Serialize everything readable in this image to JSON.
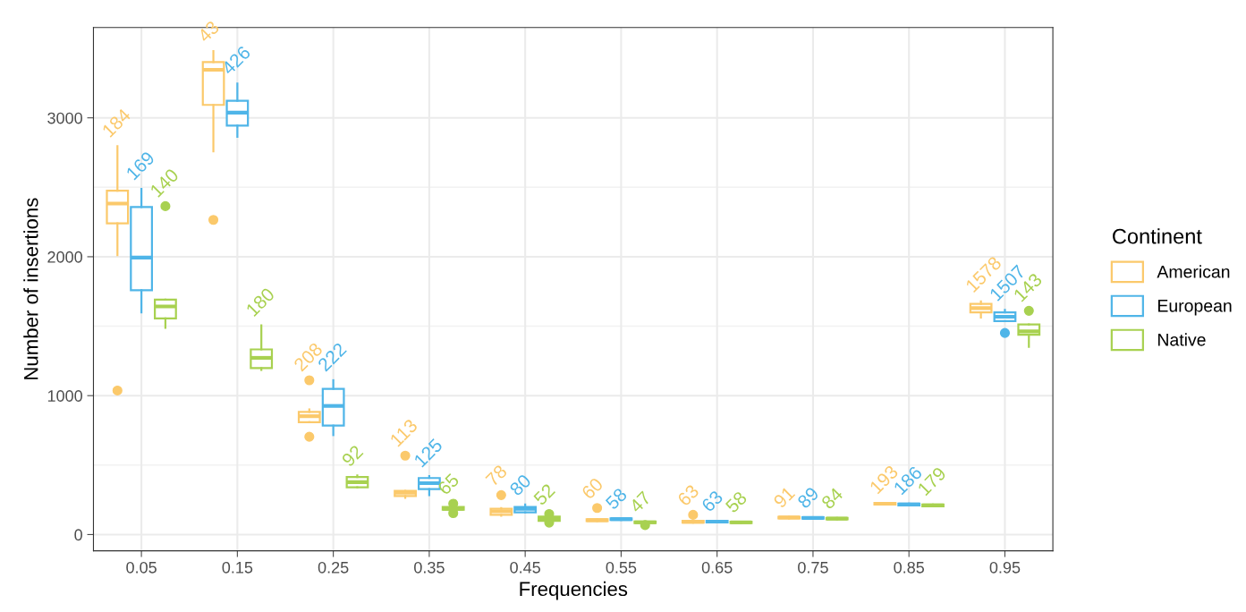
{
  "chart_data": {
    "type": "box",
    "xlabel": "Frequencies",
    "ylabel": "Number of insertions",
    "legend_title": "Continent",
    "legend": "right",
    "grid": true,
    "categories": [
      "0.05",
      "0.15",
      "0.25",
      "0.35",
      "0.45",
      "0.55",
      "0.65",
      "0.75",
      "0.85",
      "0.95"
    ],
    "ylim": [
      -117,
      3650
    ],
    "yticks": [
      0,
      1000,
      2000,
      3000
    ],
    "series": [
      {
        "name": "American",
        "color": "#fbc96b",
        "value_labels": [
          "184",
          "43",
          "208",
          "113",
          "78",
          "60",
          "63",
          "91",
          "193",
          "1578"
        ],
        "boxes": [
          {
            "low": 2012,
            "q1": 2241,
            "median": 2383,
            "q3": 2475,
            "high": 2796,
            "outliers": [
              1037
            ]
          },
          {
            "low": 2759,
            "q1": 3093,
            "median": 3346,
            "q3": 3401,
            "high": 3481,
            "outliers": [
              2265
            ]
          },
          {
            "low": 809,
            "q1": 809,
            "median": 852,
            "q3": 883,
            "high": 901,
            "outliers": [
              1111,
              704
            ]
          },
          {
            "low": 265,
            "q1": 278,
            "median": 302,
            "q3": 315,
            "high": 315,
            "outliers": [
              568
            ]
          },
          {
            "low": 136,
            "q1": 142,
            "median": 167,
            "q3": 185,
            "high": 191,
            "outliers": [
              284
            ]
          },
          {
            "low": 97,
            "q1": 97,
            "median": 103,
            "q3": 110,
            "high": 110,
            "outliers": [
              191
            ]
          },
          {
            "low": 86,
            "q1": 86,
            "median": 92,
            "q3": 98,
            "high": 98,
            "outliers": [
              142
            ]
          },
          {
            "low": 117,
            "q1": 117,
            "median": 123,
            "q3": 128,
            "high": 128
          },
          {
            "low": 216,
            "q1": 216,
            "median": 222,
            "q3": 228,
            "high": 228
          },
          {
            "low": 1562,
            "q1": 1599,
            "median": 1630,
            "q3": 1660,
            "high": 1679
          }
        ]
      },
      {
        "name": "European",
        "color": "#4fb5e8",
        "value_labels": [
          "169",
          "426",
          "222",
          "125",
          "80",
          "58",
          "63",
          "89",
          "186",
          "1507"
        ],
        "boxes": [
          {
            "low": 1599,
            "q1": 1759,
            "median": 1994,
            "q3": 2358,
            "high": 2488
          },
          {
            "low": 2864,
            "q1": 2944,
            "median": 3037,
            "q3": 3123,
            "high": 3247
          },
          {
            "low": 716,
            "q1": 784,
            "median": 926,
            "q3": 1049,
            "high": 1111
          },
          {
            "low": 284,
            "q1": 327,
            "median": 370,
            "q3": 407,
            "high": 420
          },
          {
            "low": 160,
            "q1": 160,
            "median": 185,
            "q3": 198,
            "high": 216
          },
          {
            "low": 105,
            "q1": 105,
            "median": 111,
            "q3": 117,
            "high": 117
          },
          {
            "low": 88,
            "q1": 88,
            "median": 93,
            "q3": 99,
            "high": 99
          },
          {
            "low": 114,
            "q1": 114,
            "median": 120,
            "q3": 125,
            "high": 125
          },
          {
            "low": 210,
            "q1": 210,
            "median": 216,
            "q3": 222,
            "high": 222
          },
          {
            "low": 1537,
            "q1": 1537,
            "median": 1568,
            "q3": 1599,
            "high": 1617,
            "outliers": [
              1451
            ]
          }
        ]
      },
      {
        "name": "Native",
        "color": "#a8d150",
        "value_labels": [
          "140",
          "180",
          "92",
          "65",
          "52",
          "47",
          "58",
          "84",
          "179",
          "143"
        ],
        "boxes": [
          {
            "low": 1488,
            "q1": 1556,
            "median": 1642,
            "q3": 1691,
            "high": 1691,
            "outliers": [
              2364
            ]
          },
          {
            "low": 1185,
            "q1": 1198,
            "median": 1272,
            "q3": 1333,
            "high": 1506
          },
          {
            "low": 340,
            "q1": 340,
            "median": 377,
            "q3": 414,
            "high": 426
          },
          {
            "low": 179,
            "q1": 179,
            "median": 185,
            "q3": 198,
            "high": 198,
            "outliers": [
              222,
              154
            ]
          },
          {
            "low": 99,
            "q1": 99,
            "median": 117,
            "q3": 130,
            "high": 130,
            "outliers": [
              148,
              86
            ]
          },
          {
            "low": 82,
            "q1": 82,
            "median": 88,
            "q3": 94,
            "high": 94,
            "outliers": [
              68
            ]
          },
          {
            "low": 82,
            "q1": 82,
            "median": 88,
            "q3": 93,
            "high": 93
          },
          {
            "low": 110,
            "q1": 110,
            "median": 115,
            "q3": 120,
            "high": 120
          },
          {
            "low": 204,
            "q1": 204,
            "median": 210,
            "q3": 216,
            "high": 216
          },
          {
            "low": 1352,
            "q1": 1438,
            "median": 1463,
            "q3": 1512,
            "high": 1512,
            "outliers": [
              1611
            ]
          }
        ]
      }
    ]
  }
}
